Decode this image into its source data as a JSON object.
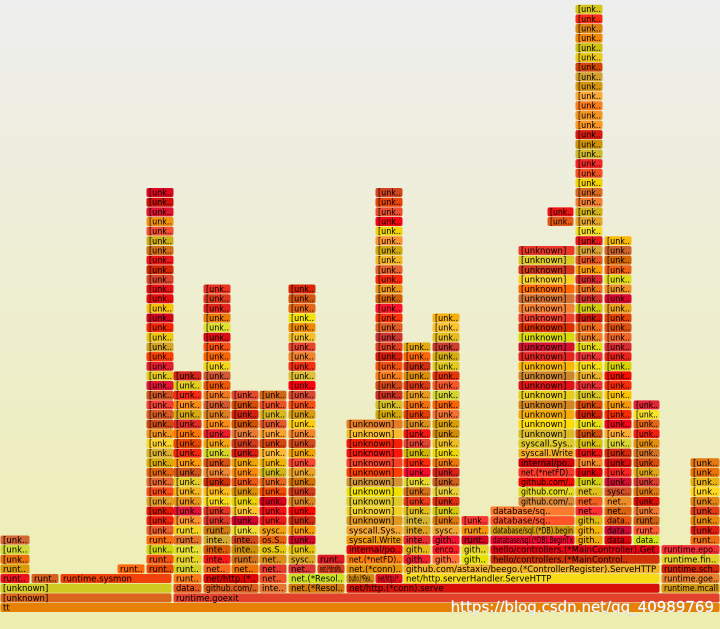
{
  "frames": [
    {
      "labels": [
        "tt"
      ]
    },
    {
      "labels": [
        "[unknown]",
        "[unknown]"
      ]
    },
    {
      "labels": [
        "runtime.goexit"
      ]
    },
    {
      "labels": [
        "runt..",
        "runt..",
        "[unk..",
        "[unk..",
        "[unk.."
      ]
    },
    {
      "labels": [
        "runt.."
      ]
    },
    {
      "labels": [
        "runtime.sysmon"
      ]
    },
    {
      "labels": [
        "runt.."
      ]
    },
    {
      "labels": [
        "runt..",
        "runt..",
        "[unk..",
        "runt..",
        "[unk..",
        "[unk..",
        "[unk..",
        "[unk..",
        "[unk..",
        "[unk..",
        "[unk..",
        "[unk..",
        "[unk..",
        "[unk..",
        "[unk..",
        "[unk..",
        "[unk..",
        "[unk..",
        "[unk..",
        "[unk..",
        "[unk..",
        "[unk..",
        "[unk..",
        "[unk..",
        "[unk..",
        "[unk..",
        "[unk..",
        "[unk..",
        "[unk..",
        "[unk..",
        "[unk..",
        "[unk..",
        "[unk..",
        "[unk..",
        "[unk..",
        "[unk..",
        "[unk..",
        "[unk..",
        "[unk..",
        "[unk.."
      ]
    },
    {
      "labels": [
        "data..",
        "runt..",
        "runt..",
        "runt..",
        "runt..",
        "runt..",
        "runt..",
        "[unk..",
        "[unk..",
        "[unk..",
        "[unk..",
        "[unk..",
        "[unk..",
        "[unk..",
        "[unk..",
        "[unk..",
        "[unk..",
        "[unk..",
        "[unk..",
        "[unk..",
        "[unk..",
        "[unk..",
        "[unk.."
      ]
    },
    {
      "labels": [
        "github.com/..",
        "net/http.(*.."
      ]
    },
    {
      "labels": [
        "net..",
        "inte..",
        "inte..",
        "inte..",
        "runt..",
        "[unk..",
        "[unk..",
        "[unk..",
        "[unk..",
        "[unk..",
        "[unk..",
        "[unk..",
        "[unk..",
        "[unk..",
        "[unk..",
        "[unk..",
        "[unk..",
        "[unk..",
        "[unk..",
        "[unk..",
        "[unk..",
        "[unk..",
        "[unk..",
        "[unk..",
        "[unk..",
        "[unk..",
        "[unk..",
        "[unk..",
        "[unk..",
        "[unk.."
      ]
    },
    {
      "labels": [
        "net..",
        "runt..",
        "inte..",
        "inte..",
        "[unk..",
        "[unk..",
        "[unk..",
        "[unk..",
        "[unk..",
        "[unk..",
        "[unk..",
        "[unk..",
        "[unk..",
        "[unk..",
        "[unk..",
        "[unk..",
        "[unk..",
        "[unk..",
        "[unk.."
      ]
    },
    {
      "labels": [
        "inte..",
        "net..",
        "net..",
        "net..",
        "os.S..",
        "os.S..",
        "sysc..",
        "[unk..",
        "[unk..",
        "[unk..",
        "[unk..",
        "[unk..",
        "[unk..",
        "[unk..",
        "[unk..",
        "[unk..",
        "[unk..",
        "[unk..",
        "[unk..",
        "[unk..",
        "[unk.."
      ]
    },
    {
      "labels": [
        "net.(*Resol..",
        "net.(*Resol.."
      ]
    },
    {
      "labels": [
        "net..",
        "sysc..",
        "[unk..",
        "[unk..",
        "[unk..",
        "[unk..",
        "[unk..",
        "[unk..",
        "[unk..",
        "[unk..",
        "[unk..",
        "[unk..",
        "[unk..",
        "[unk..",
        "[unk..",
        "[unk..",
        "[unk..",
        "[unk..",
        "[unk..",
        "[unk..",
        "[unk..",
        "[unk..",
        "[unk..",
        "[unk..",
        "[unk..",
        "[unk..",
        "[unk..",
        "[unk..",
        "[unk..",
        "[unk.."
      ]
    },
    {
      "labels": [
        "net.(*dnsPa..",
        "runt.."
      ]
    },
    {
      "labels": [
        "net/http.(*conn).serve"
      ]
    },
    {
      "labels": [
        "bufio.(*Rea.."
      ]
    },
    {
      "labels": [
        "net/http.(*.."
      ]
    },
    {
      "labels": [
        "net/http.serverHandler.ServeHTTP"
      ]
    },
    {
      "labels": [
        "net.(*conn)..",
        "net.(*netFD)..",
        "internal/po..",
        "syscall.Write",
        "syscall.Sys..",
        "[unknown]",
        "[unknown]",
        "[unknown]",
        "[unknown]",
        "[unknown]",
        "[unknown]",
        "[unknown]",
        "[unknown]",
        "[unknown]",
        "[unknown]",
        "[unknown]"
      ]
    },
    {
      "labels": [
        "[unk..",
        "[unk..",
        "[unk..",
        "[unk..",
        "[unk..",
        "[unk..",
        "[unk..",
        "[unk..",
        "[unk..",
        "[unk..",
        "[unk..",
        "[unk..",
        "[unk..",
        "[unk..",
        "[unk..",
        "[unk..",
        "[unk..",
        "[unk..",
        "[unk..",
        "[unk..",
        "[unk..",
        "[unk..",
        "[unk..",
        "[unk.."
      ]
    },
    {
      "labels": [
        "github.com/astaxie/beego.(*ControllerRegister).ServeHTTP"
      ]
    },
    {
      "labels": [
        "gith..",
        "gith..",
        "inte..",
        "inte..",
        "inte..",
        "[unk..",
        "[unk..",
        "[unk..",
        "[unk..",
        "[unk..",
        "[unk..",
        "[unk..",
        "[unk..",
        "[unk..",
        "[unk..",
        "[unk..",
        "[unk..",
        "[unk..",
        "[unk..",
        "[unk..",
        "[unk..",
        "[unk..",
        "[unk.."
      ]
    },
    {
      "labels": [
        "gith..",
        "enco..",
        "gith..",
        "sysc..",
        "[unk..",
        "[unk..",
        "[unk..",
        "[unk..",
        "[unk..",
        "[unk..",
        "[unk..",
        "[unk..",
        "[unk..",
        "[unk..",
        "[unk..",
        "[unk..",
        "[unk..",
        "[unk..",
        "[unk..",
        "[unk..",
        "[unk..",
        "[unk..",
        "[unk..",
        "[unk..",
        "[unk..",
        "[unk.."
      ]
    },
    {
      "labels": [
        "gith..",
        "gith..",
        "runt..",
        "runt..",
        "[unk.."
      ]
    },
    {
      "labels": [
        "hello/controllers.(*MainControl.."
      ]
    },
    {
      "labels": [
        "hello/controllers.(*MainController).Get"
      ]
    },
    {
      "labels": [
        "database/sql.(*DB).BeginTx",
        "database/sql.(*DB).begin",
        "database/sq..",
        "database/sq.."
      ]
    },
    {
      "labels": [
        "github.com/..",
        "github.com/..",
        "github.com/..",
        "net.(*netFD)..",
        "internal/po..",
        "syscall.Write",
        "syscall.Sys..",
        "[unknown]",
        "[unknown]",
        "[unknown]",
        "[unknown]",
        "[unknown]",
        "[unknown]",
        "[unknown]",
        "[unknown]",
        "[unknown]",
        "[unknown]",
        "[unknown]",
        "[unknown]",
        "[unknown]",
        "[unknown]",
        "[unknown]",
        "[unknown]",
        "[unknown]",
        "[unknown]",
        "[unknown]",
        "[unknown]"
      ]
    },
    {
      "labels": [
        "gith..",
        "gith..",
        "gith..",
        "net..",
        "net..",
        "net..",
        "[unk..",
        "[unk..",
        "[unk..",
        "[unk..",
        "[unk..",
        "[unk..",
        "[unk..",
        "[unk..",
        "[unk..",
        "[unk..",
        "[unk..",
        "[unk..",
        "[unk..",
        "[unk..",
        "[unk..",
        "[unk..",
        "[unk..",
        "[unk..",
        "[unk..",
        "[unk..",
        "[unk..",
        "[unk..",
        "[unk..",
        "[unk..",
        "[unk..",
        "[unk..",
        "[unk..",
        "[unk..",
        "[unk..",
        "[unk..",
        "[unk..",
        "[unk..",
        "[unk..",
        "[unk..",
        "[unk..",
        "[unk..",
        "[unk..",
        "[unk..",
        "[unk..",
        "[unk..",
        "[unk..",
        "[unk..",
        "[unk..",
        "[unk..",
        "[unk..",
        "[unk..",
        "[unk..",
        "[unk..",
        "[unk..",
        "[unk.."
      ]
    },
    {
      "labels": [
        "data..",
        "data..",
        "data..",
        "net..",
        "net..",
        "sysc..",
        "[unk..",
        "[unk..",
        "[unk..",
        "[unk..",
        "[unk..",
        "[unk..",
        "[unk..",
        "[unk..",
        "[unk..",
        "[unk..",
        "[unk..",
        "[unk..",
        "[unk..",
        "[unk..",
        "[unk..",
        "[unk..",
        "[unk..",
        "[unk..",
        "[unk..",
        "[unk..",
        "[unk..",
        "[unk..",
        "[unk..",
        "[unk..",
        "[unk..",
        "[unk.."
      ]
    },
    {
      "labels": [
        "data..",
        "runt..",
        "runt..",
        "[unk..",
        "[unk..",
        "[unk..",
        "[unk..",
        "[unk..",
        "[unk..",
        "[unk..",
        "[unk..",
        "[unk..",
        "[unk..",
        "[unk..",
        "[unk.."
      ]
    },
    {
      "labels": [
        "[unk..",
        "[unk.."
      ]
    },
    {
      "labels": [
        "runtime.mcall",
        "runtime.goe..",
        "runtime.sch..",
        "runtime.fin..",
        "runtime.epo.."
      ]
    },
    {
      "labels": [
        "runt..",
        "[unk..",
        "[unk..",
        "[unk..",
        "[unk..",
        "[unk..",
        "[unk..",
        "[unk..",
        "[unk.."
      ]
    }
  ],
  "watermark": "https://blog.csdn.net/qq_40989769"
}
